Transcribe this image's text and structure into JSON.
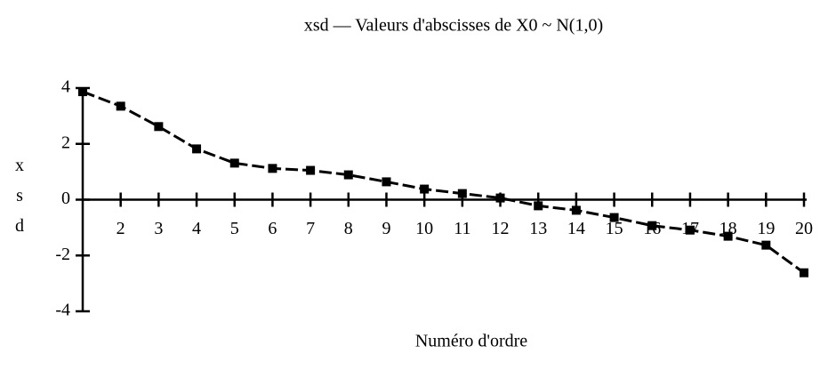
{
  "chart_data": {
    "type": "line",
    "title": "xsd — Valeurs d'abscisses de X0 ~ N(1,0)",
    "x_label": "Numéro d'ordre",
    "y_label": "xsd",
    "x": [
      1,
      2,
      3,
      4,
      5,
      6,
      7,
      8,
      9,
      10,
      11,
      12,
      13,
      14,
      15,
      16,
      17,
      18,
      19,
      20
    ],
    "series": [
      {
        "color": "#000000",
        "values": [
          3.87,
          3.35,
          2.62,
          1.82,
          1.31,
          1.12,
          1.05,
          0.89,
          0.64,
          0.38,
          0.22,
          0.06,
          -0.22,
          -0.38,
          -0.64,
          -0.93,
          -1.09,
          -1.31,
          -1.63,
          -2.62
        ]
      }
    ],
    "xlim": [
      1,
      20
    ],
    "xticks": [
      2,
      3,
      4,
      5,
      6,
      7,
      8,
      9,
      10,
      11,
      12,
      13,
      14,
      15,
      16,
      17,
      18,
      19,
      20
    ],
    "ylim": [
      -4,
      4
    ],
    "yticks": [
      -4,
      -2,
      0,
      2,
      4
    ]
  }
}
